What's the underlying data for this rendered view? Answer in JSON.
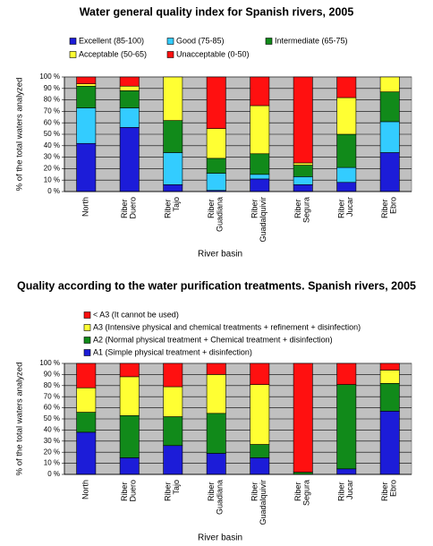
{
  "chart_data": [
    {
      "type": "stacked_bar",
      "title": "Water general quality index for Spanish rivers, 2005",
      "x_label": "River basin",
      "y_label": "% of the total waters analyzed",
      "categories": [
        "North",
        "Riber Duero",
        "Riber Tajo",
        "Riber Guadiana",
        "Riber Guadalquivir",
        "Riber Segura",
        "Riber Jucar",
        "Riber Ebro"
      ],
      "series": [
        {
          "name": "Excellent (85-100)",
          "color": "#1c1cd8",
          "values": [
            42,
            56,
            6,
            1,
            11,
            6,
            8,
            34
          ]
        },
        {
          "name": "Good (75-85)",
          "color": "#33ccff",
          "values": [
            31,
            17,
            28,
            15,
            4,
            7,
            13,
            27
          ]
        },
        {
          "name": "Intermediate (65-75)",
          "color": "#118a1a",
          "values": [
            19,
            15,
            28,
            13,
            18,
            10,
            29,
            26
          ]
        },
        {
          "name": "Acceptable (50-65)",
          "color": "#ffff33",
          "values": [
            2,
            4,
            38,
            26,
            42,
            2,
            32,
            13
          ]
        },
        {
          "name": "Unacceptable (0-50)",
          "color": "#ff1010",
          "values": [
            6,
            8,
            0,
            45,
            25,
            75,
            18,
            0
          ]
        }
      ],
      "ylim": [
        0,
        100
      ],
      "yticks": [
        {
          "value": 0,
          "label": "0 %"
        },
        {
          "value": 10,
          "label": "10 %"
        },
        {
          "value": 20,
          "label": "20 %"
        },
        {
          "value": 30,
          "label": "30 %"
        },
        {
          "value": 40,
          "label": "40 %"
        },
        {
          "value": 50,
          "label": "50 %"
        },
        {
          "value": 60,
          "label": "60 %"
        },
        {
          "value": 70,
          "label": "70 %"
        },
        {
          "value": 80,
          "label": "80 %"
        },
        {
          "value": 90,
          "label": "90 %"
        },
        {
          "value": 100,
          "label": "100 %"
        }
      ],
      "grid": true
    },
    {
      "type": "stacked_bar",
      "title": "Quality according to the water purification treatments. Spanish rivers, 2005",
      "x_label": "River basin",
      "y_label": "% of the total waters analyzed",
      "categories": [
        "North",
        "Riber Duero",
        "Riber Tajo",
        "Riber Guadiana",
        "Riber Guadalquivir",
        "Riber Segura",
        "Riber Jucar",
        "Riber Ebro"
      ],
      "series": [
        {
          "name": "A1 (Simple physical treatment + disinfection)",
          "color": "#1c1cd8",
          "values": [
            38,
            15,
            26,
            19,
            15,
            0,
            5,
            57
          ]
        },
        {
          "name": "A2 (Normal physical treatment + Chemical treatment + disinfection)",
          "color": "#118a1a",
          "values": [
            18,
            38,
            26,
            36,
            12,
            2,
            76,
            25
          ]
        },
        {
          "name": "A3 (Intensive physical and chemical treatments + refinement + disinfection)",
          "color": "#ffff33",
          "values": [
            22,
            35,
            27,
            35,
            54,
            0,
            0,
            12
          ]
        },
        {
          "name": "< A3 (It cannot be used)",
          "color": "#ff1010",
          "values": [
            22,
            12,
            21,
            10,
            19,
            98,
            19,
            6
          ]
        }
      ],
      "ylim": [
        0,
        100
      ],
      "yticks": [
        {
          "value": 0,
          "label": "0 %"
        },
        {
          "value": 10,
          "label": "10 %"
        },
        {
          "value": 20,
          "label": "20 %"
        },
        {
          "value": 30,
          "label": "30 %"
        },
        {
          "value": 40,
          "label": "40 %"
        },
        {
          "value": 50,
          "label": "50 %"
        },
        {
          "value": 60,
          "label": "60 %"
        },
        {
          "value": 70,
          "label": "70 %"
        },
        {
          "value": 80,
          "label": "80 %"
        },
        {
          "value": 90,
          "label": "90 %"
        },
        {
          "value": 100,
          "label": "100 %"
        }
      ],
      "grid": true
    }
  ]
}
